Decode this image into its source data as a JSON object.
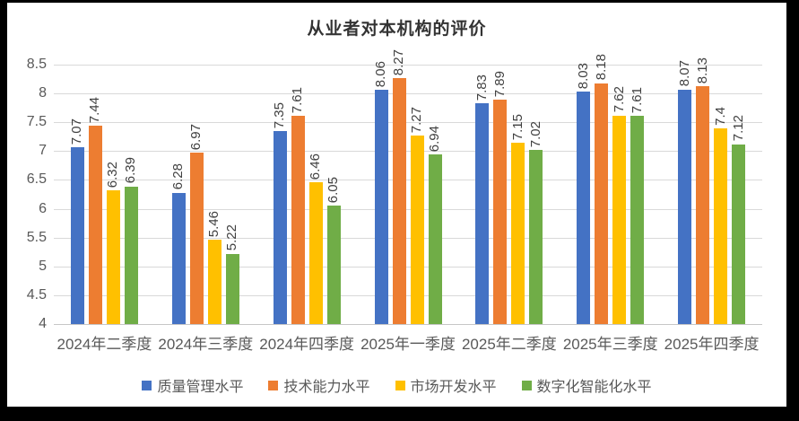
{
  "frame": {
    "background_color": "#000000",
    "card_background_color": "#ffffff"
  },
  "chart_data": {
    "type": "bar",
    "title": "从业者对本机构的评价",
    "categories": [
      "2024年二季度",
      "2024年三季度",
      "2024年四季度",
      "2025年一季度",
      "2025年二季度",
      "2025年三季度",
      "2025年四季度"
    ],
    "series": [
      {
        "name": "质量管理水平",
        "color": "#4472C4",
        "values": [
          7.07,
          6.28,
          7.35,
          8.06,
          7.83,
          8.03,
          8.07
        ]
      },
      {
        "name": "技术能力水平",
        "color": "#ED7D31",
        "values": [
          7.44,
          6.97,
          7.61,
          8.27,
          7.89,
          8.18,
          8.13
        ]
      },
      {
        "name": "市场开发水平",
        "color": "#FFC000",
        "values": [
          6.32,
          5.46,
          6.46,
          7.27,
          7.15,
          7.62,
          7.4
        ]
      },
      {
        "name": "数字化智能化水平",
        "color": "#70AD47",
        "values": [
          6.39,
          5.22,
          6.05,
          6.94,
          7.02,
          7.61,
          7.12
        ]
      }
    ],
    "xlabel": "",
    "ylabel": "",
    "ylim": [
      4,
      8.5
    ],
    "ytick_step": 0.5,
    "ytick_labels": [
      "4",
      "4.5",
      "5",
      "5.5",
      "6",
      "6.5",
      "7",
      "7.5",
      "8",
      "8.5"
    ],
    "grid": true,
    "data_labels_rotation": "vertical-bottom-to-top",
    "legend_position": "bottom",
    "colors": {
      "gridline": "#d9d9d9",
      "axis_line": "#c6c6c6",
      "tick_label": "#595959",
      "data_label": "#404040",
      "title": "#333333"
    }
  }
}
